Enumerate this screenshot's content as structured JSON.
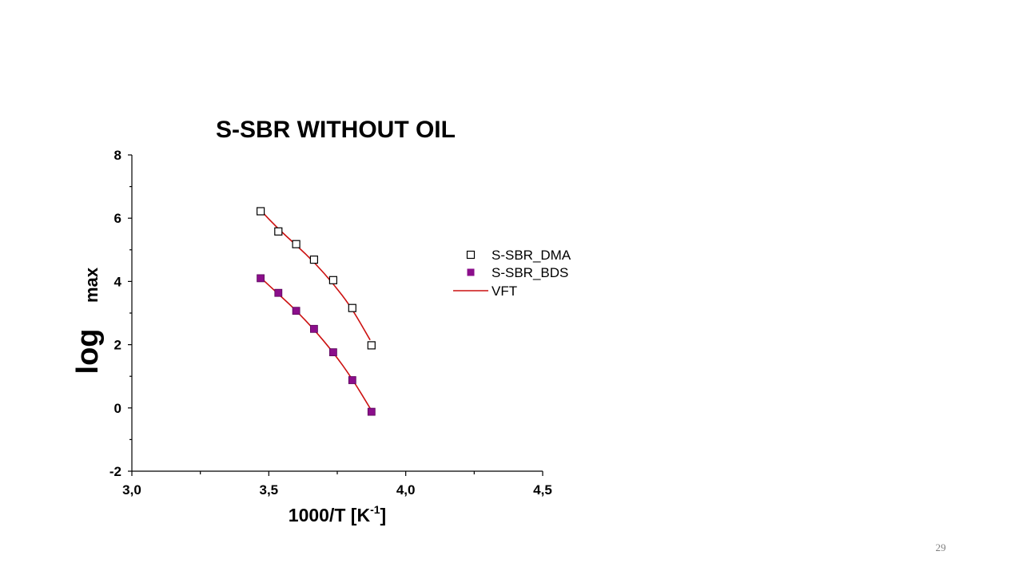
{
  "slide": {
    "page_number": "29"
  },
  "chart_data": {
    "type": "scatter",
    "title": "S-SBR WITHOUT OIL",
    "xlabel": "1000/T [K",
    "xlabel_superscript": "-1",
    "xlabel_suffix": "]",
    "ylabel_main": "log",
    "ylabel_subscript": "max",
    "xlim": [
      3.0,
      4.5
    ],
    "ylim": [
      -2,
      8
    ],
    "x_ticks": [
      {
        "value": 3.0,
        "label": "3,0"
      },
      {
        "value": 3.5,
        "label": "3,5"
      },
      {
        "value": 4.0,
        "label": "4,0"
      },
      {
        "value": 4.5,
        "label": "4,5"
      }
    ],
    "x_minor_ticks": [
      3.25,
      3.75,
      4.25
    ],
    "y_ticks": [
      {
        "value": -2,
        "label": "-2"
      },
      {
        "value": 0,
        "label": "0"
      },
      {
        "value": 2,
        "label": "2"
      },
      {
        "value": 4,
        "label": "4"
      },
      {
        "value": 6,
        "label": "6"
      },
      {
        "value": 8,
        "label": "8"
      }
    ],
    "y_minor_ticks": [
      -1,
      1,
      3,
      5,
      7
    ],
    "grid": false,
    "legend_position": "right",
    "series": [
      {
        "name": "S-SBR_DMA",
        "marker": "open-square",
        "color": "#000000",
        "x": [
          3.47,
          3.535,
          3.6,
          3.665,
          3.735,
          3.805,
          3.875
        ],
        "y": [
          6.22,
          5.58,
          5.18,
          4.69,
          4.04,
          3.16,
          1.98
        ]
      },
      {
        "name": "S-SBR_BDS",
        "marker": "filled-square",
        "color": "#8b0e8b",
        "x": [
          3.47,
          3.535,
          3.6,
          3.665,
          3.735,
          3.805,
          3.875
        ],
        "y": [
          4.1,
          3.64,
          3.07,
          2.5,
          1.76,
          0.88,
          -0.12
        ]
      },
      {
        "name": "VFT",
        "marker": "line",
        "color": "#cc1111",
        "curves": [
          {
            "x": [
              3.47,
              3.53,
              3.6,
              3.67,
              3.735,
              3.8,
              3.87
            ],
            "y": [
              6.25,
              5.7,
              5.15,
              4.57,
              3.93,
              3.2,
              2.15
            ]
          },
          {
            "x": [
              3.47,
              3.535,
              3.6,
              3.665,
              3.735,
              3.805,
              3.875
            ],
            "y": [
              4.12,
              3.6,
              3.08,
              2.48,
              1.76,
              0.92,
              -0.08
            ]
          }
        ]
      }
    ]
  }
}
